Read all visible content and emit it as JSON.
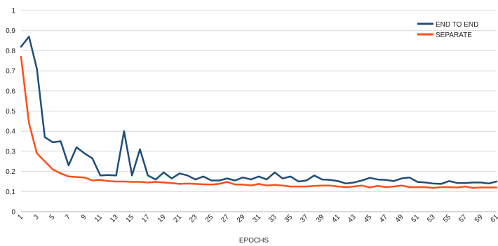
{
  "chart_data": {
    "type": "line",
    "xlabel": "EPOCHS",
    "ylabel": "",
    "ylim": [
      0,
      1
    ],
    "yticks": [
      "0",
      "0.1",
      "0.2",
      "0.3",
      "0.4",
      "0.5",
      "0.6",
      "0.7",
      "0.8",
      "0.9",
      "1"
    ],
    "grid": "horizontal",
    "legend": "top-right",
    "x": [
      1,
      2,
      3,
      4,
      5,
      6,
      7,
      8,
      9,
      10,
      11,
      12,
      13,
      14,
      15,
      16,
      17,
      18,
      19,
      20,
      21,
      22,
      23,
      24,
      25,
      26,
      27,
      28,
      29,
      30,
      31,
      32,
      33,
      34,
      35,
      36,
      37,
      38,
      39,
      40,
      41,
      42,
      43,
      44,
      45,
      46,
      47,
      48,
      49,
      50,
      51,
      52,
      53,
      54,
      55,
      56,
      57,
      58,
      59,
      60,
      61
    ],
    "xticks": [
      "1",
      "3",
      "5",
      "7",
      "9",
      "11",
      "13",
      "15",
      "17",
      "19",
      "21",
      "23",
      "25",
      "27",
      "29",
      "31",
      "33",
      "35",
      "37",
      "39",
      "41",
      "43",
      "45",
      "47",
      "49",
      "51",
      "53",
      "55",
      "57",
      "59",
      "61"
    ],
    "series": [
      {
        "name": "END TO END",
        "color": "#1f4e79",
        "values": [
          0.82,
          0.87,
          0.71,
          0.37,
          0.345,
          0.35,
          0.23,
          0.32,
          0.29,
          0.265,
          0.18,
          0.182,
          0.18,
          0.4,
          0.18,
          0.31,
          0.18,
          0.16,
          0.195,
          0.165,
          0.19,
          0.18,
          0.16,
          0.175,
          0.155,
          0.155,
          0.165,
          0.155,
          0.17,
          0.16,
          0.175,
          0.16,
          0.195,
          0.165,
          0.175,
          0.15,
          0.155,
          0.18,
          0.16,
          0.158,
          0.152,
          0.14,
          0.145,
          0.155,
          0.168,
          0.16,
          0.158,
          0.152,
          0.165,
          0.17,
          0.148,
          0.145,
          0.14,
          0.138,
          0.152,
          0.143,
          0.142,
          0.145,
          0.145,
          0.14,
          0.15
        ]
      },
      {
        "name": "SEPARATE",
        "color": "#ff4e1a",
        "values": [
          0.77,
          0.44,
          0.29,
          0.25,
          0.21,
          0.19,
          0.175,
          0.172,
          0.17,
          0.155,
          0.158,
          0.152,
          0.15,
          0.15,
          0.148,
          0.148,
          0.145,
          0.148,
          0.145,
          0.142,
          0.138,
          0.14,
          0.138,
          0.136,
          0.135,
          0.138,
          0.148,
          0.135,
          0.135,
          0.13,
          0.138,
          0.13,
          0.133,
          0.13,
          0.125,
          0.125,
          0.125,
          0.128,
          0.13,
          0.13,
          0.125,
          0.122,
          0.125,
          0.13,
          0.12,
          0.128,
          0.122,
          0.125,
          0.13,
          0.122,
          0.122,
          0.122,
          0.118,
          0.122,
          0.122,
          0.12,
          0.125,
          0.118,
          0.12,
          0.12,
          0.12
        ]
      }
    ]
  }
}
